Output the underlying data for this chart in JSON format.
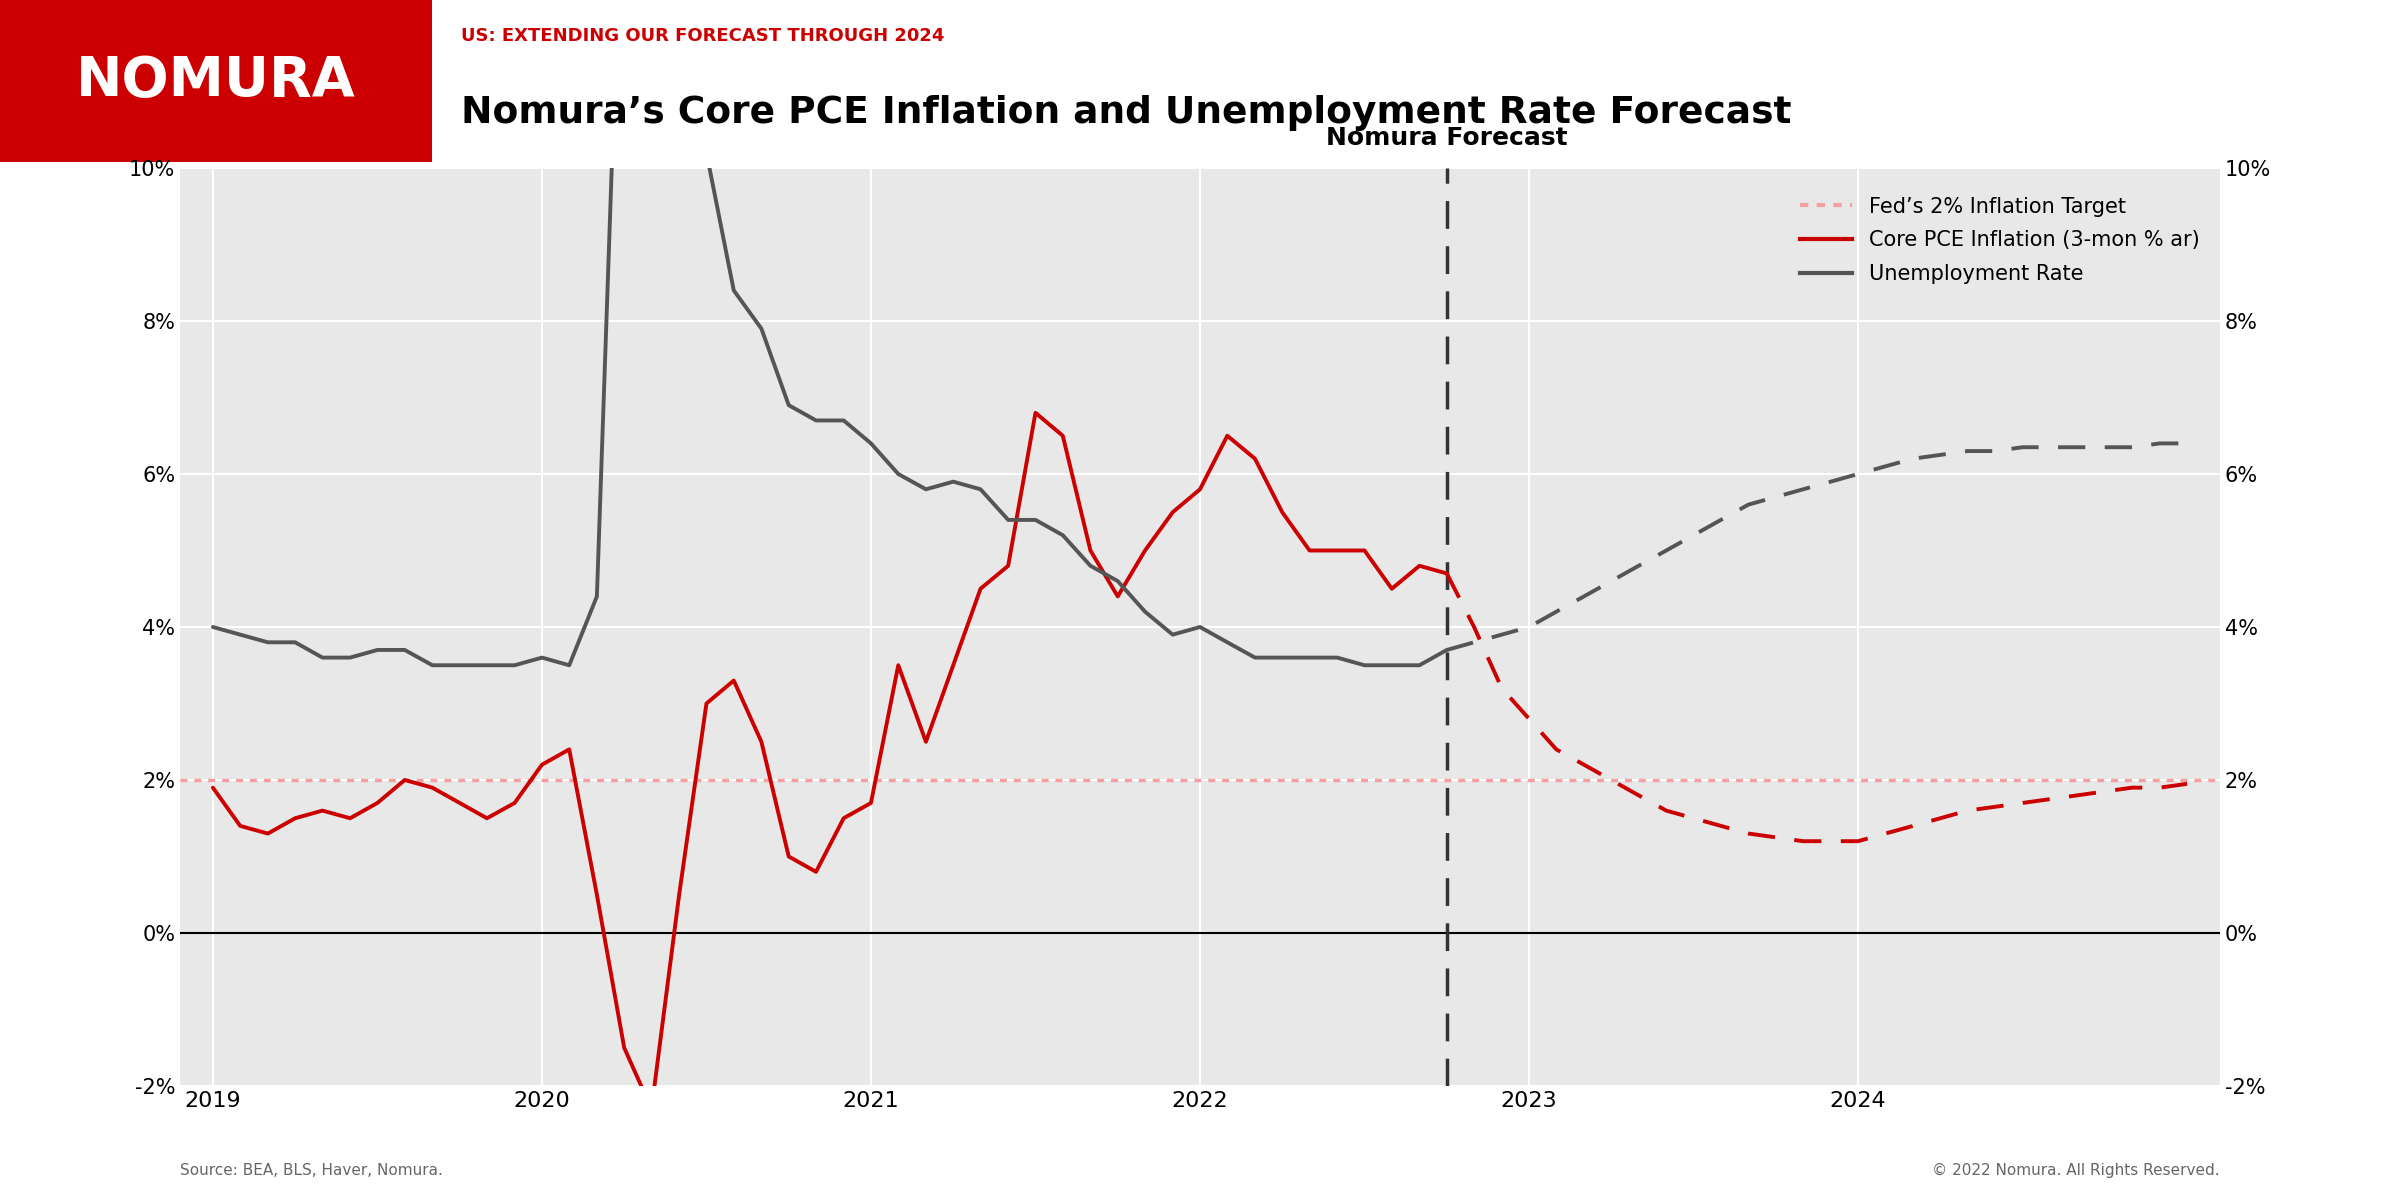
{
  "title_subtitle": "US: EXTENDING OUR FORECAST THROUGH 2024",
  "title_main": "Nomura’s Core PCE Inflation and Unemployment Rate Forecast",
  "background_color": "#e8e8e8",
  "header_bg": "#ffffff",
  "nomura_red": "#cc0000",
  "forecast_line_x": 2022.75,
  "forecast_label": "Nomura Forecast",
  "source_text": "Source: BEA, BLS, Haver, Nomura.",
  "copyright_text": "© 2022 Nomura. All Rights Reserved.",
  "ylim": [
    -2,
    10
  ],
  "yticks": [
    -2,
    0,
    2,
    4,
    6,
    8,
    10
  ],
  "xlim_start": 2018.9,
  "xlim_end": 2025.1,
  "fed_target": 2.0,
  "fed_target_color": "#f4a0a0",
  "fed_target_label": "Fed’s 2% Inflation Target",
  "core_pce_color": "#cc0000",
  "core_pce_label": "Core PCE Inflation (3-mon % ar)",
  "unemp_color": "#555555",
  "unemp_label": "Unemployment Rate",
  "core_pce_actual_x": [
    2019.0,
    2019.083,
    2019.167,
    2019.25,
    2019.333,
    2019.417,
    2019.5,
    2019.583,
    2019.667,
    2019.75,
    2019.833,
    2019.917,
    2020.0,
    2020.083,
    2020.167,
    2020.25,
    2020.333,
    2020.417,
    2020.5,
    2020.583,
    2020.667,
    2020.75,
    2020.833,
    2020.917,
    2021.0,
    2021.083,
    2021.167,
    2021.25,
    2021.333,
    2021.417,
    2021.5,
    2021.583,
    2021.667,
    2021.75,
    2021.833,
    2021.917,
    2022.0,
    2022.083,
    2022.167,
    2022.25,
    2022.333,
    2022.417,
    2022.5,
    2022.583,
    2022.667,
    2022.75
  ],
  "core_pce_actual_y": [
    1.9,
    1.4,
    1.3,
    1.5,
    1.6,
    1.5,
    1.7,
    2.0,
    1.9,
    1.7,
    1.5,
    1.7,
    2.2,
    2.4,
    0.5,
    -1.5,
    -2.3,
    0.5,
    3.0,
    3.3,
    2.5,
    1.0,
    0.8,
    1.5,
    1.7,
    3.5,
    2.5,
    3.5,
    4.5,
    4.8,
    6.8,
    6.5,
    5.0,
    4.4,
    5.0,
    5.5,
    5.8,
    6.5,
    6.2,
    5.5,
    5.0,
    5.0,
    5.0,
    4.5,
    4.8,
    4.7
  ],
  "core_pce_forecast_x": [
    2022.75,
    2022.833,
    2022.917,
    2023.0,
    2023.083,
    2023.167,
    2023.25,
    2023.333,
    2023.417,
    2023.5,
    2023.583,
    2023.667,
    2023.75,
    2023.833,
    2023.917,
    2024.0,
    2024.083,
    2024.167,
    2024.25,
    2024.333,
    2024.417,
    2024.5,
    2024.583,
    2024.667,
    2024.75,
    2024.833,
    2024.917,
    2025.0
  ],
  "core_pce_forecast_y": [
    4.7,
    4.0,
    3.2,
    2.8,
    2.4,
    2.2,
    2.0,
    1.8,
    1.6,
    1.5,
    1.4,
    1.3,
    1.25,
    1.2,
    1.2,
    1.2,
    1.3,
    1.4,
    1.5,
    1.6,
    1.65,
    1.7,
    1.75,
    1.8,
    1.85,
    1.9,
    1.9,
    1.95
  ],
  "unemp_actual_x": [
    2019.0,
    2019.083,
    2019.167,
    2019.25,
    2019.333,
    2019.417,
    2019.5,
    2019.583,
    2019.667,
    2019.75,
    2019.833,
    2019.917,
    2020.0,
    2020.083,
    2020.167,
    2020.25,
    2020.333,
    2020.417,
    2020.5,
    2020.583,
    2020.667,
    2020.75,
    2020.833,
    2020.917,
    2021.0,
    2021.083,
    2021.167,
    2021.25,
    2021.333,
    2021.417,
    2021.5,
    2021.583,
    2021.667,
    2021.75,
    2021.833,
    2021.917,
    2022.0,
    2022.083,
    2022.167,
    2022.25,
    2022.333,
    2022.417,
    2022.5,
    2022.583,
    2022.667,
    2022.75
  ],
  "unemp_actual_y": [
    4.0,
    3.9,
    3.8,
    3.8,
    3.6,
    3.6,
    3.7,
    3.7,
    3.5,
    3.5,
    3.5,
    3.5,
    3.6,
    3.5,
    4.4,
    14.7,
    13.3,
    11.1,
    10.2,
    8.4,
    7.9,
    6.9,
    6.7,
    6.7,
    6.4,
    6.0,
    5.8,
    5.9,
    5.8,
    5.4,
    5.4,
    5.2,
    4.8,
    4.6,
    4.2,
    3.9,
    4.0,
    3.8,
    3.6,
    3.6,
    3.6,
    3.6,
    3.5,
    3.5,
    3.5,
    3.7
  ],
  "unemp_forecast_x": [
    2022.75,
    2022.833,
    2022.917,
    2023.0,
    2023.083,
    2023.167,
    2023.25,
    2023.333,
    2023.417,
    2023.5,
    2023.583,
    2023.667,
    2023.75,
    2023.833,
    2023.917,
    2024.0,
    2024.083,
    2024.167,
    2024.25,
    2024.333,
    2024.417,
    2024.5,
    2024.583,
    2024.667,
    2024.75,
    2024.833,
    2024.917,
    2025.0
  ],
  "unemp_forecast_y": [
    3.7,
    3.8,
    3.9,
    4.0,
    4.2,
    4.4,
    4.6,
    4.8,
    5.0,
    5.2,
    5.4,
    5.6,
    5.7,
    5.8,
    5.9,
    6.0,
    6.1,
    6.2,
    6.25,
    6.3,
    6.3,
    6.35,
    6.35,
    6.35,
    6.35,
    6.35,
    6.4,
    6.4
  ],
  "xtick_positions": [
    2019,
    2020,
    2021,
    2022,
    2023,
    2024
  ],
  "xtick_labels": [
    "2019",
    "2020",
    "2021",
    "2022",
    "2023",
    "2024"
  ]
}
